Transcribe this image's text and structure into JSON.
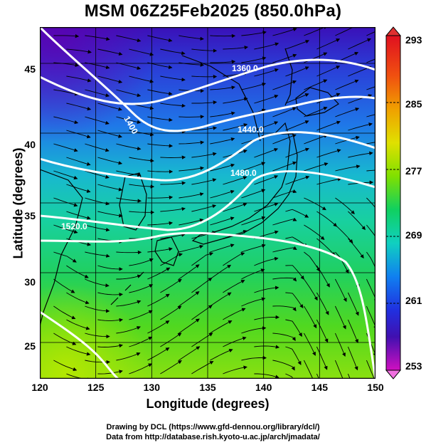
{
  "title": "MSM 06Z25Feb2025 (850.0hPa)",
  "axes": {
    "xlabel": "Longitude (degrees)",
    "ylabel": "Latitude  (degrees)",
    "x_ticks": [
      "120",
      "125",
      "130",
      "135",
      "140",
      "145",
      "150"
    ],
    "y_ticks": [
      "25",
      "30",
      "35",
      "40",
      "45"
    ]
  },
  "colorbar": {
    "ticks": [
      "293",
      "285",
      "277",
      "269",
      "261",
      "253"
    ],
    "range": [
      253,
      293
    ]
  },
  "contours": {
    "labels": [
      "1360.0",
      "1400",
      "1440.0",
      "1480.0",
      "1520.0"
    ]
  },
  "credits": {
    "line1": "Drawing by DCL (https://www.gfd-dennou.org/library/dcl/)",
    "line2": "Data from http://database.rish.kyoto-u.ac.jp/arch/jmadata/"
  },
  "chart_data": {
    "type": "heatmap",
    "title": "MSM 06Z25Feb2025 (850.0hPa)",
    "xlabel": "Longitude (degrees)",
    "ylabel": "Latitude  (degrees)",
    "xlim": [
      120,
      150
    ],
    "ylim": [
      22.4,
      47.6
    ],
    "colorbar_range": [
      253,
      293
    ],
    "colorbar_ticks": [
      253,
      261,
      269,
      277,
      285,
      293
    ],
    "contour_levels": [
      1360,
      1400,
      1440,
      1480,
      1520
    ],
    "grid": true
  }
}
